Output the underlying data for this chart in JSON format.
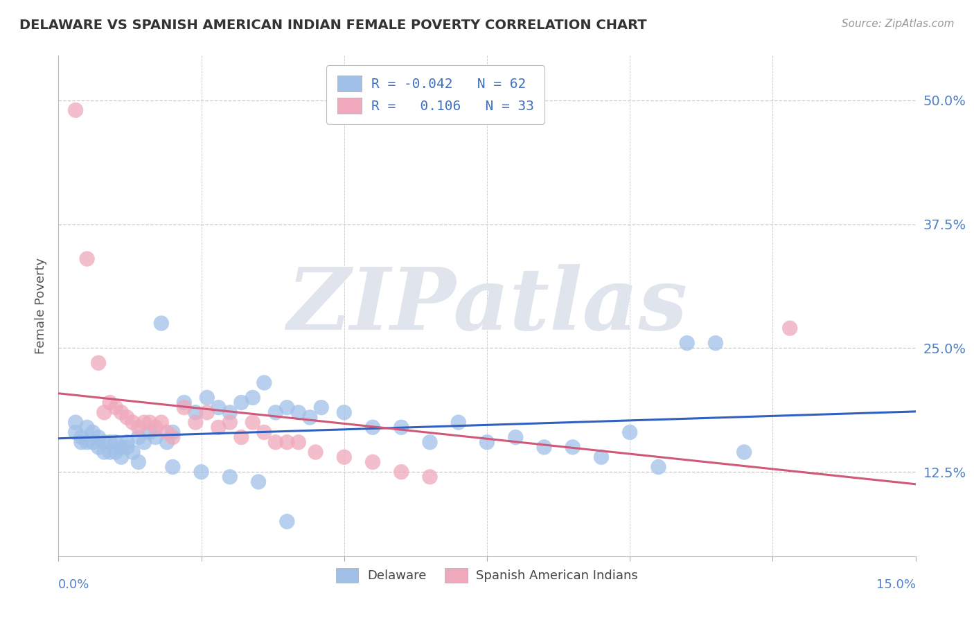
{
  "title": "DELAWARE VS SPANISH AMERICAN INDIAN FEMALE POVERTY CORRELATION CHART",
  "source": "Source: ZipAtlas.com",
  "ylabel": "Female Poverty",
  "ytick_labels": [
    "12.5%",
    "25.0%",
    "37.5%",
    "50.0%"
  ],
  "ytick_values": [
    0.125,
    0.25,
    0.375,
    0.5
  ],
  "xlim": [
    0.0,
    0.15
  ],
  "ylim": [
    0.04,
    0.545
  ],
  "blue_scatter": "#A0C0E8",
  "pink_scatter": "#F0A8BC",
  "blue_line": "#3060C0",
  "pink_line": "#D05878",
  "right_tick_color": "#5080C8",
  "grid_color": "#C8C8C8",
  "background": "#FFFFFF",
  "watermark_text": "ZIPatlas",
  "watermark_color": "#E0E4EC",
  "title_fontsize": 14,
  "legend_text_color": "#4070C0",
  "legend_entry1": "R = -0.042   N = 62",
  "legend_entry2": "R =   0.106   N = 33",
  "bottom_leg1": "Delaware",
  "bottom_leg2": "Spanish American Indians",
  "del_x": [
    0.003,
    0.003,
    0.004,
    0.004,
    0.005,
    0.005,
    0.006,
    0.006,
    0.007,
    0.007,
    0.008,
    0.008,
    0.009,
    0.009,
    0.01,
    0.01,
    0.011,
    0.011,
    0.012,
    0.012,
    0.013,
    0.014,
    0.015,
    0.016,
    0.017,
    0.018,
    0.019,
    0.02,
    0.022,
    0.024,
    0.026,
    0.028,
    0.03,
    0.032,
    0.034,
    0.036,
    0.038,
    0.04,
    0.042,
    0.044,
    0.046,
    0.05,
    0.055,
    0.06,
    0.065,
    0.07,
    0.075,
    0.08,
    0.085,
    0.09,
    0.095,
    0.1,
    0.105,
    0.11,
    0.115,
    0.12,
    0.014,
    0.02,
    0.025,
    0.03,
    0.035,
    0.04
  ],
  "del_y": [
    0.175,
    0.165,
    0.16,
    0.155,
    0.17,
    0.155,
    0.165,
    0.155,
    0.16,
    0.15,
    0.155,
    0.145,
    0.155,
    0.145,
    0.155,
    0.145,
    0.15,
    0.14,
    0.155,
    0.15,
    0.145,
    0.16,
    0.155,
    0.165,
    0.16,
    0.275,
    0.155,
    0.165,
    0.195,
    0.185,
    0.2,
    0.19,
    0.185,
    0.195,
    0.2,
    0.215,
    0.185,
    0.19,
    0.185,
    0.18,
    0.19,
    0.185,
    0.17,
    0.17,
    0.155,
    0.175,
    0.155,
    0.16,
    0.15,
    0.15,
    0.14,
    0.165,
    0.13,
    0.255,
    0.255,
    0.145,
    0.135,
    0.13,
    0.125,
    0.12,
    0.115,
    0.075
  ],
  "sp_x": [
    0.003,
    0.005,
    0.007,
    0.008,
    0.009,
    0.01,
    0.011,
    0.012,
    0.013,
    0.014,
    0.015,
    0.016,
    0.017,
    0.018,
    0.019,
    0.02,
    0.022,
    0.024,
    0.026,
    0.028,
    0.03,
    0.032,
    0.034,
    0.036,
    0.038,
    0.04,
    0.042,
    0.045,
    0.05,
    0.055,
    0.06,
    0.065,
    0.128
  ],
  "sp_y": [
    0.49,
    0.34,
    0.235,
    0.185,
    0.195,
    0.19,
    0.185,
    0.18,
    0.175,
    0.17,
    0.175,
    0.175,
    0.17,
    0.175,
    0.165,
    0.16,
    0.19,
    0.175,
    0.185,
    0.17,
    0.175,
    0.16,
    0.175,
    0.165,
    0.155,
    0.155,
    0.155,
    0.145,
    0.14,
    0.135,
    0.125,
    0.12,
    0.27
  ]
}
